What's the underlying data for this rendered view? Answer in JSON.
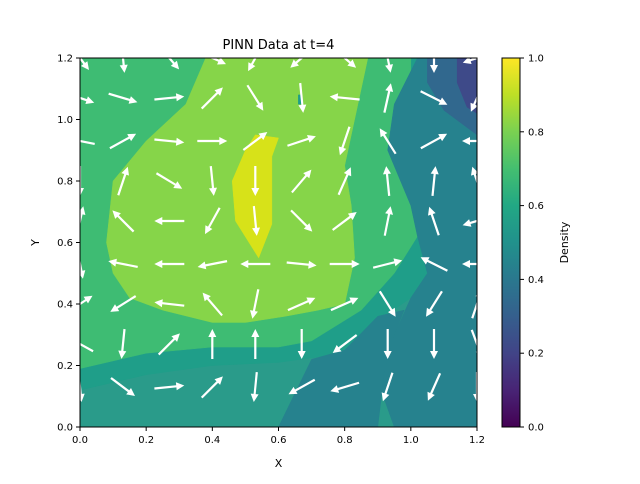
{
  "chart_data": {
    "type": "contour_quiver",
    "title": "PINN Data at t=4",
    "xlabel": "X",
    "ylabel": "Y",
    "xlim": [
      0,
      1.2
    ],
    "ylim": [
      0,
      1.2
    ],
    "xticks": [
      "0.0",
      "0.2",
      "0.4",
      "0.6",
      "0.8",
      "1.0",
      "1.2"
    ],
    "yticks": [
      "0.0",
      "0.2",
      "0.4",
      "0.6",
      "0.8",
      "1.0",
      "1.2"
    ],
    "grid": false,
    "colorbar": {
      "label": "Density",
      "range": [
        0,
        1
      ],
      "ticks": [
        "0.0",
        "0.2",
        "0.4",
        "0.6",
        "0.8",
        "1.0"
      ],
      "colormap": "viridis"
    },
    "density_levels": [
      {
        "level": 0.9,
        "color": "#d7e219"
      },
      {
        "level": 0.8,
        "color": "#86d549"
      },
      {
        "level": 0.7,
        "color": "#3ebc73"
      },
      {
        "level": 0.6,
        "color": "#1f9e89"
      },
      {
        "level": 0.5,
        "color": "#26828e"
      },
      {
        "level": 0.4,
        "color": "#31688e"
      },
      {
        "level": 0.3,
        "color": "#3e4a89"
      }
    ],
    "contour_regions": [
      {
        "level": 0.6,
        "points": [
          [
            0,
            0.12
          ],
          [
            0.2,
            0.17
          ],
          [
            0.4,
            0.2
          ],
          [
            0.6,
            0.21
          ],
          [
            0.8,
            0.24
          ],
          [
            0.92,
            0.36
          ],
          [
            1.0,
            0.42
          ],
          [
            1.1,
            0.46
          ],
          [
            1.2,
            0.49
          ],
          [
            1.2,
            0.9
          ],
          [
            1.2,
            1.2
          ],
          [
            0,
            1.2
          ]
        ]
      },
      {
        "level": 0.7,
        "points": [
          [
            0,
            0.19
          ],
          [
            0.2,
            0.24
          ],
          [
            0.4,
            0.26
          ],
          [
            0.6,
            0.26
          ],
          [
            0.7,
            0.28
          ],
          [
            0.85,
            0.38
          ],
          [
            0.95,
            0.5
          ],
          [
            1.02,
            0.62
          ],
          [
            1.02,
            0.72
          ],
          [
            1.02,
            0.95
          ],
          [
            1.0,
            1.1
          ],
          [
            1.0,
            1.2
          ],
          [
            0,
            1.2
          ]
        ]
      },
      {
        "level": 0.8,
        "points": [
          [
            0.1,
            0.5
          ],
          [
            0.08,
            0.6
          ],
          [
            0.1,
            0.8
          ],
          [
            0.2,
            0.93
          ],
          [
            0.32,
            1.05
          ],
          [
            0.38,
            1.2
          ],
          [
            0.87,
            1.2
          ],
          [
            0.83,
            1.0
          ],
          [
            0.8,
            0.85
          ],
          [
            0.82,
            0.72
          ],
          [
            0.83,
            0.55
          ],
          [
            0.8,
            0.4
          ],
          [
            0.72,
            0.38
          ],
          [
            0.62,
            0.36
          ],
          [
            0.5,
            0.34
          ],
          [
            0.4,
            0.34
          ],
          [
            0.25,
            0.38
          ],
          [
            0.15,
            0.42
          ]
        ]
      },
      {
        "level": 0.9,
        "points": [
          [
            0.47,
            0.67
          ],
          [
            0.46,
            0.8
          ],
          [
            0.5,
            0.9
          ],
          [
            0.53,
            0.95
          ],
          [
            0.6,
            0.94
          ],
          [
            0.58,
            0.88
          ],
          [
            0.58,
            0.78
          ],
          [
            0.58,
            0.66
          ],
          [
            0.54,
            0.55
          ]
        ]
      },
      {
        "level": 0.6,
        "points": [
          [
            0.66,
            1.05
          ],
          [
            0.67,
            1.05
          ],
          [
            0.67,
            1.08
          ],
          [
            0.66,
            1.08
          ]
        ]
      },
      {
        "level": 0.5,
        "points": [
          [
            0.95,
            0
          ],
          [
            1.2,
            0
          ],
          [
            1.2,
            1.2
          ],
          [
            1.02,
            1.2
          ],
          [
            0.95,
            1.05
          ],
          [
            0.93,
            0.9
          ],
          [
            1.0,
            0.72
          ],
          [
            1.02,
            0.62
          ],
          [
            1.05,
            0.5
          ],
          [
            1.0,
            0.42
          ],
          [
            0.95,
            0.3
          ],
          [
            0.9,
            0.15
          ]
        ]
      },
      {
        "level": 0.4,
        "points": [
          [
            1.05,
            1.2
          ],
          [
            1.05,
            1.12
          ],
          [
            1.1,
            1.03
          ],
          [
            1.2,
            0.95
          ],
          [
            1.2,
            1.2
          ]
        ]
      },
      {
        "level": 0.5,
        "points": [
          [
            0.6,
            0
          ],
          [
            0.9,
            0
          ],
          [
            0.92,
            0.18
          ],
          [
            0.95,
            0.3
          ],
          [
            0.98,
            0.38
          ],
          [
            0.9,
            0.36
          ],
          [
            0.8,
            0.25
          ],
          [
            0.7,
            0.22
          ]
        ]
      },
      {
        "level": 0.3,
        "points": [
          [
            1.14,
            1.2
          ],
          [
            1.14,
            1.12
          ],
          [
            1.17,
            1.04
          ],
          [
            1.2,
            1.02
          ],
          [
            1.2,
            1.2
          ]
        ]
      }
    ],
    "arrows": [
      {
        "x": 0,
        "y": 1.2,
        "u": 0.6,
        "v": -0.8
      },
      {
        "x": 0.13,
        "y": 1.2,
        "u": 0.1,
        "v": -1
      },
      {
        "x": 0.27,
        "y": 1.2,
        "u": 0.6,
        "v": -0.7
      },
      {
        "x": 0.4,
        "y": 1.2,
        "u": 0.9,
        "v": -0.4
      },
      {
        "x": 0.53,
        "y": 1.2,
        "u": -0.5,
        "v": -0.9
      },
      {
        "x": 0.67,
        "y": 1.2,
        "u": -0.7,
        "v": -0.6
      },
      {
        "x": 0.8,
        "y": 1.2,
        "u": 0.7,
        "v": -0.6
      },
      {
        "x": 0.93,
        "y": 1.2,
        "u": 0.2,
        "v": -1
      },
      {
        "x": 1.07,
        "y": 1.2,
        "u": 0,
        "v": -1
      },
      {
        "x": 1.2,
        "y": 1.2,
        "u": -0.9,
        "v": -0.3
      },
      {
        "x": 0,
        "y": 1.07,
        "u": 0.9,
        "v": -0.3
      },
      {
        "x": 0.13,
        "y": 1.07,
        "u": 1,
        "v": -0.3
      },
      {
        "x": 0.27,
        "y": 1.07,
        "u": 1,
        "v": 0.1
      },
      {
        "x": 0.4,
        "y": 1.07,
        "u": 0.7,
        "v": 0.7
      },
      {
        "x": 0.53,
        "y": 1.07,
        "u": 0.5,
        "v": -0.8
      },
      {
        "x": 0.67,
        "y": 1.07,
        "u": 0.1,
        "v": -1
      },
      {
        "x": 0.8,
        "y": 1.07,
        "u": -1,
        "v": 0.1
      },
      {
        "x": 0.93,
        "y": 1.07,
        "u": 0.2,
        "v": 0.9
      },
      {
        "x": 1.07,
        "y": 1.07,
        "u": 1,
        "v": -0.5
      },
      {
        "x": 1.2,
        "y": 1.07,
        "u": -0.4,
        "v": -0.9
      },
      {
        "x": 0,
        "y": 0.93,
        "u": -1,
        "v": 0.2
      },
      {
        "x": 0.13,
        "y": 0.93,
        "u": 0.9,
        "v": 0.5
      },
      {
        "x": 0.27,
        "y": 0.93,
        "u": 1,
        "v": -0.1
      },
      {
        "x": 0.4,
        "y": 0.93,
        "u": 1,
        "v": 0
      },
      {
        "x": 0.53,
        "y": 0.93,
        "u": 0.8,
        "v": 0.6
      },
      {
        "x": 0.67,
        "y": 0.93,
        "u": 0.9,
        "v": 0.3
      },
      {
        "x": 0.8,
        "y": 0.93,
        "u": -0.3,
        "v": -0.9
      },
      {
        "x": 0.93,
        "y": 0.93,
        "u": -0.5,
        "v": 0.8
      },
      {
        "x": 1.07,
        "y": 0.93,
        "u": 0.9,
        "v": 0.5
      },
      {
        "x": 1.2,
        "y": 0.93,
        "u": -1,
        "v": 0
      },
      {
        "x": 0,
        "y": 0.8,
        "u": 0,
        "v": -1
      },
      {
        "x": 0.13,
        "y": 0.8,
        "u": 0.3,
        "v": 0.9
      },
      {
        "x": 0.27,
        "y": 0.8,
        "u": 0.5,
        "v": -0.3
      },
      {
        "x": 0.4,
        "y": 0.8,
        "u": 0.1,
        "v": -1
      },
      {
        "x": 0.53,
        "y": 0.8,
        "u": 0,
        "v": -1
      },
      {
        "x": 0.67,
        "y": 0.8,
        "u": 0.6,
        "v": 0.7
      },
      {
        "x": 0.8,
        "y": 0.8,
        "u": 0.4,
        "v": 0.9
      },
      {
        "x": 0.93,
        "y": 0.8,
        "u": -0.1,
        "v": 1
      },
      {
        "x": 1.07,
        "y": 0.8,
        "u": 0.1,
        "v": 1
      },
      {
        "x": 1.2,
        "y": 0.8,
        "u": -0.3,
        "v": 0.9
      },
      {
        "x": 0,
        "y": 0.67,
        "u": 0.2,
        "v": 0.9
      },
      {
        "x": 0.13,
        "y": 0.67,
        "u": -0.7,
        "v": 0.7
      },
      {
        "x": 0.27,
        "y": 0.67,
        "u": -1,
        "v": 0
      },
      {
        "x": 0.4,
        "y": 0.67,
        "u": -0.5,
        "v": -0.9
      },
      {
        "x": 0.53,
        "y": 0.67,
        "u": 0.1,
        "v": -1
      },
      {
        "x": 0.67,
        "y": 0.67,
        "u": 0.7,
        "v": -0.7
      },
      {
        "x": 0.8,
        "y": 0.67,
        "u": 0.8,
        "v": 0.6
      },
      {
        "x": 0.93,
        "y": 0.67,
        "u": 0.2,
        "v": 1
      },
      {
        "x": 1.07,
        "y": 0.67,
        "u": -0.3,
        "v": 0.9
      },
      {
        "x": 1.2,
        "y": 0.67,
        "u": -1,
        "v": -0.3
      },
      {
        "x": 0,
        "y": 0.53,
        "u": 0.2,
        "v": -1
      },
      {
        "x": 0.13,
        "y": 0.53,
        "u": -1,
        "v": 0.2
      },
      {
        "x": 0.27,
        "y": 0.53,
        "u": -1,
        "v": 0
      },
      {
        "x": 0.4,
        "y": 0.53,
        "u": -1,
        "v": -0.2
      },
      {
        "x": 0.53,
        "y": 0.53,
        "u": -1,
        "v": 0
      },
      {
        "x": 0.67,
        "y": 0.53,
        "u": 1,
        "v": -0.1
      },
      {
        "x": 0.8,
        "y": 0.53,
        "u": 1,
        "v": 0
      },
      {
        "x": 0.93,
        "y": 0.53,
        "u": 0.8,
        "v": 0.2
      },
      {
        "x": 1.07,
        "y": 0.53,
        "u": -0.8,
        "v": 0.4
      },
      {
        "x": 1.2,
        "y": 0.53,
        "u": -1,
        "v": 0
      },
      {
        "x": 0,
        "y": 0.4,
        "u": 0.6,
        "v": 0.4
      },
      {
        "x": 0.13,
        "y": 0.4,
        "u": -0.8,
        "v": -0.5
      },
      {
        "x": 0.27,
        "y": 0.4,
        "u": -0.9,
        "v": 0.1
      },
      {
        "x": 0.4,
        "y": 0.4,
        "u": -0.6,
        "v": 0.7
      },
      {
        "x": 0.53,
        "y": 0.4,
        "u": -0.2,
        "v": -1
      },
      {
        "x": 0.67,
        "y": 0.4,
        "u": 0.9,
        "v": 0.4
      },
      {
        "x": 0.8,
        "y": 0.4,
        "u": 0.9,
        "v": 0.4
      },
      {
        "x": 0.93,
        "y": 0.4,
        "u": 0.5,
        "v": -0.8
      },
      {
        "x": 1.07,
        "y": 0.4,
        "u": -0.5,
        "v": -0.8
      },
      {
        "x": 1.2,
        "y": 0.4,
        "u": 0.3,
        "v": 0.9
      },
      {
        "x": 0,
        "y": 0.27,
        "u": -0.9,
        "v": 0.5
      },
      {
        "x": 0.13,
        "y": 0.27,
        "u": -0.1,
        "v": -1
      },
      {
        "x": 0.27,
        "y": 0.27,
        "u": 0.6,
        "v": 0.6
      },
      {
        "x": 0.4,
        "y": 0.27,
        "u": 0,
        "v": 1
      },
      {
        "x": 0.53,
        "y": 0.27,
        "u": 0,
        "v": 1
      },
      {
        "x": 0.67,
        "y": 0.27,
        "u": 0,
        "v": -1
      },
      {
        "x": 0.8,
        "y": 0.27,
        "u": -0.8,
        "v": -0.6
      },
      {
        "x": 0.93,
        "y": 0.27,
        "u": 0,
        "v": -1
      },
      {
        "x": 1.07,
        "y": 0.27,
        "u": 0,
        "v": -1
      },
      {
        "x": 1.2,
        "y": 0.27,
        "u": 0.3,
        "v": -0.8
      },
      {
        "x": 0,
        "y": 0.13,
        "u": 0.1,
        "v": -1
      },
      {
        "x": 0.13,
        "y": 0.13,
        "u": 0.8,
        "v": -0.6
      },
      {
        "x": 0.27,
        "y": 0.13,
        "u": 1,
        "v": 0.1
      },
      {
        "x": 0.4,
        "y": 0.13,
        "u": 0.7,
        "v": 0.7
      },
      {
        "x": 0.53,
        "y": 0.13,
        "u": -0.1,
        "v": -1
      },
      {
        "x": 0.67,
        "y": 0.13,
        "u": -0.9,
        "v": -0.5
      },
      {
        "x": 0.8,
        "y": 0.13,
        "u": -1,
        "v": -0.3
      },
      {
        "x": 0.93,
        "y": 0.13,
        "u": -0.3,
        "v": -0.9
      },
      {
        "x": 1.07,
        "y": 0.13,
        "u": -0.4,
        "v": -0.9
      },
      {
        "x": 1.2,
        "y": 0.13,
        "u": 0,
        "v": -1
      }
    ]
  }
}
